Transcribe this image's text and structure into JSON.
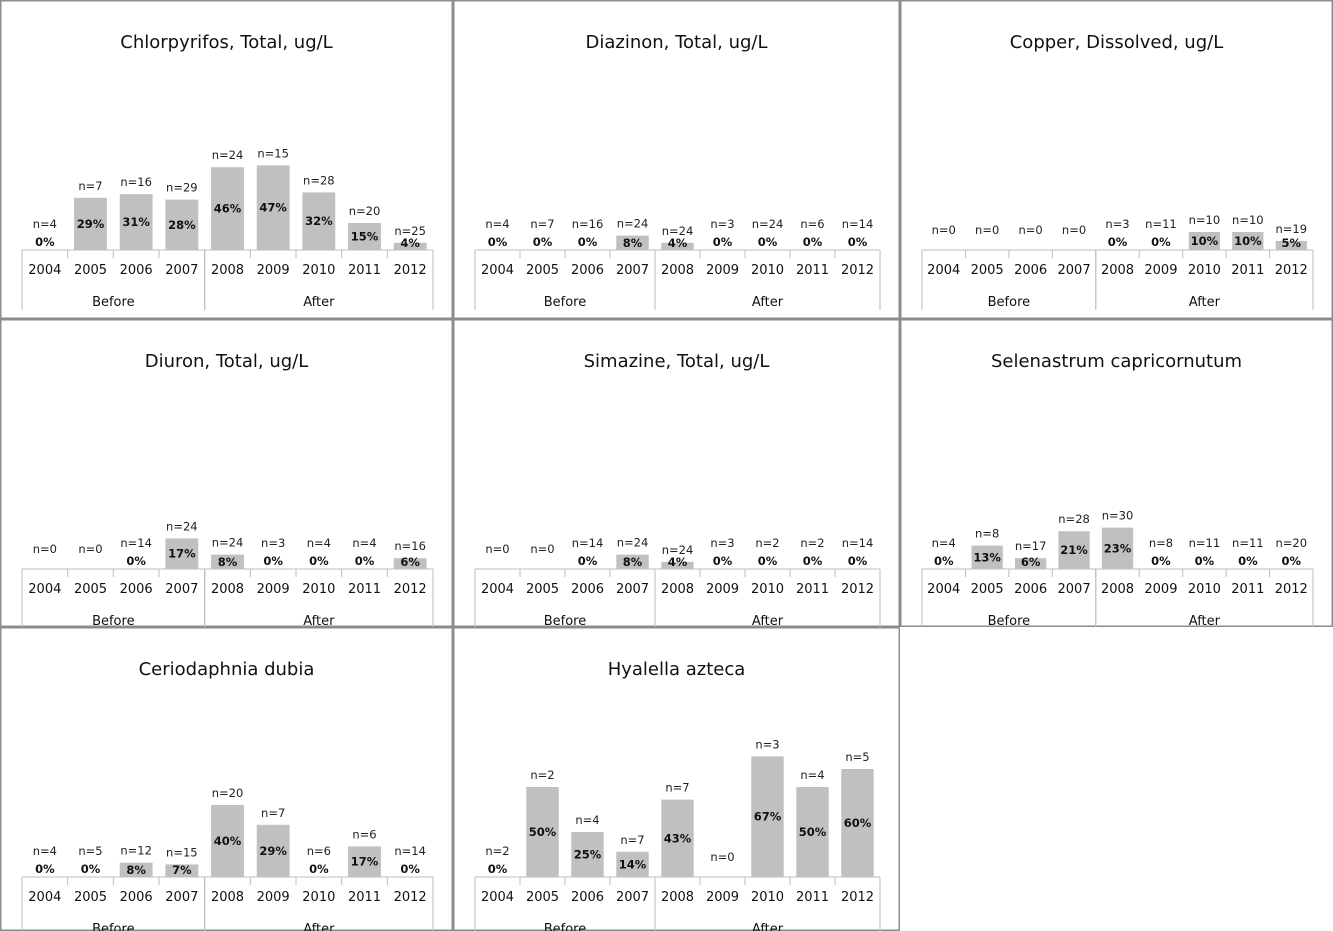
{
  "chart_data": [
    {
      "type": "bar",
      "title": "Chlorpyrifos, Total, ug/L",
      "categories": [
        "2004",
        "2005",
        "2006",
        "2007",
        "2008",
        "2009",
        "2010",
        "2011",
        "2012"
      ],
      "groups": [
        {
          "label": "Before",
          "span": 4
        },
        {
          "label": "After",
          "span": 5
        }
      ],
      "values": [
        0,
        29,
        31,
        28,
        46,
        47,
        32,
        15,
        4
      ],
      "value_labels": [
        "0%",
        "29%",
        "31%",
        "28%",
        "46%",
        "47%",
        "32%",
        "15%",
        "4%"
      ],
      "n_labels": [
        "n=4",
        "n=7",
        "n=16",
        "n=29",
        "n=24",
        "n=15",
        "n=28",
        "n=20",
        "n=25"
      ],
      "ylim": [
        0,
        100
      ],
      "color": "#c0c0c0"
    },
    {
      "type": "bar",
      "title": "Diazinon, Total, ug/L",
      "categories": [
        "2004",
        "2005",
        "2006",
        "2007",
        "2008",
        "2009",
        "2010",
        "2011",
        "2012"
      ],
      "groups": [
        {
          "label": "Before",
          "span": 4
        },
        {
          "label": "After",
          "span": 5
        }
      ],
      "values": [
        0,
        0,
        0,
        8,
        4,
        0,
        0,
        0,
        0
      ],
      "value_labels": [
        "0%",
        "0%",
        "0%",
        "8%",
        "4%",
        "0%",
        "0%",
        "0%",
        "0%"
      ],
      "n_labels": [
        "n=4",
        "n=7",
        "n=16",
        "n=24",
        "n=24",
        "n=3",
        "n=24",
        "n=6",
        "n=14"
      ],
      "ylim": [
        0,
        100
      ],
      "color": "#c0c0c0"
    },
    {
      "type": "bar",
      "title": "Copper, Dissolved, ug/L",
      "categories": [
        "2004",
        "2005",
        "2006",
        "2007",
        "2008",
        "2009",
        "2010",
        "2011",
        "2012"
      ],
      "groups": [
        {
          "label": "Before",
          "span": 4
        },
        {
          "label": "After",
          "span": 5
        }
      ],
      "values": [
        null,
        null,
        null,
        null,
        0,
        0,
        10,
        10,
        5
      ],
      "value_labels": [
        "",
        "",
        "",
        "",
        "0%",
        "0%",
        "10%",
        "10%",
        "5%"
      ],
      "n_labels": [
        "n=0",
        "n=0",
        "n=0",
        "n=0",
        "n=3",
        "n=11",
        "n=10",
        "n=10",
        "n=19"
      ],
      "ylim": [
        0,
        100
      ],
      "color": "#c0c0c0"
    },
    {
      "type": "bar",
      "title": "Diuron, Total, ug/L",
      "categories": [
        "2004",
        "2005",
        "2006",
        "2007",
        "2008",
        "2009",
        "2010",
        "2011",
        "2012"
      ],
      "groups": [
        {
          "label": "Before",
          "span": 4
        },
        {
          "label": "After",
          "span": 5
        }
      ],
      "values": [
        null,
        null,
        0,
        17,
        8,
        0,
        0,
        0,
        6
      ],
      "value_labels": [
        "",
        "",
        "0%",
        "17%",
        "8%",
        "0%",
        "0%",
        "0%",
        "6%"
      ],
      "n_labels": [
        "n=0",
        "n=0",
        "n=14",
        "n=24",
        "n=24",
        "n=3",
        "n=4",
        "n=4",
        "n=16"
      ],
      "ylim": [
        0,
        100
      ],
      "color": "#c0c0c0"
    },
    {
      "type": "bar",
      "title": "Simazine, Total, ug/L",
      "categories": [
        "2004",
        "2005",
        "2006",
        "2007",
        "2008",
        "2009",
        "2010",
        "2011",
        "2012"
      ],
      "groups": [
        {
          "label": "Before",
          "span": 4
        },
        {
          "label": "After",
          "span": 5
        }
      ],
      "values": [
        null,
        null,
        0,
        8,
        4,
        0,
        0,
        0,
        0
      ],
      "value_labels": [
        "",
        "",
        "0%",
        "8%",
        "4%",
        "0%",
        "0%",
        "0%",
        "0%"
      ],
      "n_labels": [
        "n=0",
        "n=0",
        "n=14",
        "n=24",
        "n=24",
        "n=3",
        "n=2",
        "n=2",
        "n=14"
      ],
      "ylim": [
        0,
        100
      ],
      "color": "#c0c0c0"
    },
    {
      "type": "bar",
      "title": "Selenastrum capricornutum",
      "categories": [
        "2004",
        "2005",
        "2006",
        "2007",
        "2008",
        "2009",
        "2010",
        "2011",
        "2012"
      ],
      "groups": [
        {
          "label": "Before",
          "span": 4
        },
        {
          "label": "After",
          "span": 5
        }
      ],
      "values": [
        0,
        13,
        6,
        21,
        23,
        0,
        0,
        0,
        0
      ],
      "value_labels": [
        "0%",
        "13%",
        "6%",
        "21%",
        "23%",
        "0%",
        "0%",
        "0%",
        "0%"
      ],
      "n_labels": [
        "n=4",
        "n=8",
        "n=17",
        "n=28",
        "n=30",
        "n=8",
        "n=11",
        "n=11",
        "n=20"
      ],
      "ylim": [
        0,
        100
      ],
      "color": "#c0c0c0"
    },
    {
      "type": "bar",
      "title": "Ceriodaphnia dubia",
      "categories": [
        "2004",
        "2005",
        "2006",
        "2007",
        "2008",
        "2009",
        "2010",
        "2011",
        "2012"
      ],
      "groups": [
        {
          "label": "Before",
          "span": 4
        },
        {
          "label": "After",
          "span": 5
        }
      ],
      "values": [
        0,
        0,
        8,
        7,
        40,
        29,
        0,
        17,
        0
      ],
      "value_labels": [
        "0%",
        "0%",
        "8%",
        "7%",
        "40%",
        "29%",
        "0%",
        "17%",
        "0%"
      ],
      "n_labels": [
        "n=4",
        "n=5",
        "n=12",
        "n=15",
        "n=20",
        "n=7",
        "n=6",
        "n=6",
        "n=14"
      ],
      "ylim": [
        0,
        100
      ],
      "color": "#c0c0c0"
    },
    {
      "type": "bar",
      "title": "Hyalella azteca",
      "categories": [
        "2004",
        "2005",
        "2006",
        "2007",
        "2008",
        "2009",
        "2010",
        "2011",
        "2012"
      ],
      "groups": [
        {
          "label": "Before",
          "span": 4
        },
        {
          "label": "After",
          "span": 5
        }
      ],
      "values": [
        0,
        50,
        25,
        14,
        43,
        null,
        67,
        50,
        60
      ],
      "value_labels": [
        "0%",
        "50%",
        "25%",
        "14%",
        "43%",
        "",
        "67%",
        "50%",
        "60%"
      ],
      "n_labels": [
        "n=2",
        "n=2",
        "n=4",
        "n=7",
        "n=7",
        "n=0",
        "n=3",
        "n=4",
        "n=5"
      ],
      "ylim": [
        0,
        100
      ],
      "color": "#c0c0c0"
    }
  ]
}
